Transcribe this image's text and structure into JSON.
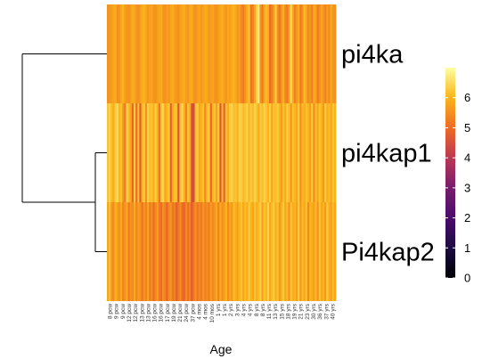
{
  "chart_data": {
    "type": "heatmap",
    "xlabel": "Age",
    "rows": [
      "pi4ka",
      "pi4kap1",
      "Pi4kap2"
    ],
    "x_tick_labels": [
      "8 pcw",
      "9 pcw",
      "9 pcw",
      "12 pcw",
      "12 pcw",
      "13 pcw",
      "13 pcw",
      "16 pcw",
      "16 pcw",
      "17 pcw",
      "19 pcw",
      "21 pcw",
      "24 pcw",
      "37 pcw",
      "4 mos",
      "4 mos",
      "10 mos",
      "1 yrs",
      "1 yrs",
      "2 yrs",
      "3 yrs",
      "4 yrs",
      "4 yrs",
      "8 yrs",
      "8 yrs",
      "11 yrs",
      "13 yrs",
      "15 yrs",
      "18 yrs",
      "19 yrs",
      "21 yrs",
      "23 yrs",
      "30 yrs",
      "36 yrs",
      "37 yrs",
      "40 yrs"
    ],
    "colorbar": {
      "min": 0,
      "max": 7,
      "ticks": [
        0,
        1,
        2,
        3,
        4,
        5,
        6
      ],
      "palette": "inferno-yellow-high"
    },
    "dendrogram": "pi4kap1 and Pi4kap2 cluster first, then join pi4ka",
    "values": [
      [
        5.5,
        5.6,
        5.7,
        5.8,
        5.9,
        5.5,
        5.6,
        5.8,
        6.0,
        5.7,
        5.6,
        5.5,
        5.7,
        5.9,
        5.8,
        5.6,
        5.5,
        5.7,
        5.9,
        6.0,
        5.8,
        5.6,
        5.7,
        5.8,
        5.6,
        5.5,
        5.7,
        5.8,
        5.9,
        5.6,
        5.5,
        5.7,
        5.6,
        5.8,
        5.9,
        5.7,
        5.6,
        5.5,
        5.7,
        5.8,
        5.9,
        5.7,
        5.6,
        5.8,
        5.9,
        5.6,
        5.5,
        5.7,
        5.8,
        5.6,
        5.7,
        5.9,
        5.8,
        5.6,
        5.7,
        5.8,
        5.6,
        5.5,
        5.7,
        5.8,
        5.9,
        5.7,
        5.6,
        5.8,
        5.7,
        5.9,
        6.0,
        5.8,
        5.6,
        5.7,
        5.4,
        5.2,
        5.6,
        5.9,
        6.2,
        5.1,
        5.3,
        5.8,
        6.4,
        6.7,
        5.6,
        5.2,
        5.8,
        6.1,
        5.9,
        5.0,
        5.3,
        5.7,
        6.3,
        5.5,
        5.1,
        5.6,
        6.0,
        5.4,
        5.2,
        5.7,
        6.5,
        5.8,
        5.3,
        5.6,
        5.9,
        5.2,
        5.5,
        6.1,
        5.8,
        5.4,
        5.6,
        5.3,
        5.9,
        5.7,
        5.2,
        5.5,
        5.8,
        5.6,
        5.3,
        5.7,
        5.4,
        5.9,
        5.6,
        5.5
      ],
      [
        6.2,
        6.4,
        6.1,
        5.9,
        6.3,
        6.5,
        6.0,
        6.2,
        5.6,
        5.2,
        6.4,
        6.1,
        5.8,
        4.9,
        6.3,
        5.0,
        6.2,
        4.7,
        6.0,
        6.3,
        5.5,
        6.4,
        6.1,
        6.2,
        5.9,
        6.3,
        6.0,
        5.1,
        6.2,
        6.4,
        5.8,
        6.0,
        6.3,
        4.8,
        5.9,
        6.2,
        6.1,
        4.6,
        6.2,
        6.4,
        6.0,
        5.3,
        6.2,
        5.9,
        4.5,
        4.4,
        6.1,
        6.3,
        5.8,
        6.0,
        6.2,
        5.4,
        6.1,
        6.3,
        4.9,
        6.0,
        6.2,
        5.7,
        6.3,
        4.6,
        6.1,
        4.8,
        6.2,
        5.9,
        6.3,
        6.4,
        6.1,
        6.2,
        6.0,
        6.4,
        6.3,
        6.1,
        6.2,
        6.4,
        6.0,
        6.3,
        6.1,
        6.4,
        6.2,
        5.9,
        6.3,
        6.1,
        6.4,
        6.2,
        6.0,
        6.3,
        5.8,
        6.2,
        6.1,
        6.3,
        6.0,
        5.7,
        6.2,
        5.9,
        6.3,
        6.1,
        5.6,
        6.2,
        6.0,
        5.8,
        6.3,
        5.5,
        6.1,
        5.9,
        6.2,
        6.0,
        5.7,
        6.3,
        5.4,
        6.1,
        5.8,
        6.2,
        6.0,
        5.6,
        6.3,
        5.9,
        6.1,
        5.8,
        6.2,
        6.0
      ],
      [
        5.8,
        6.2,
        5.6,
        5.4,
        6.0,
        5.7,
        5.5,
        5.9,
        5.3,
        5.6,
        5.8,
        5.2,
        5.6,
        5.4,
        5.9,
        5.3,
        5.7,
        5.5,
        5.1,
        5.6,
        5.3,
        5.8,
        5.2,
        5.5,
        5.0,
        5.4,
        5.7,
        5.2,
        5.0,
        5.5,
        5.3,
        4.9,
        5.4,
        5.6,
        5.1,
        5.3,
        4.8,
        5.2,
        5.5,
        5.0,
        4.9,
        5.4,
        5.1,
        5.3,
        4.7,
        5.2,
        5.5,
        5.1,
        5.4,
        5.2,
        5.6,
        5.3,
        5.5,
        5.2,
        5.7,
        5.4,
        5.6,
        5.8,
        5.3,
        5.9,
        5.5,
        5.7,
        6.0,
        5.4,
        5.8,
        5.6,
        6.1,
        5.9,
        5.7,
        6.0,
        6.2,
        5.8,
        6.1,
        5.9,
        6.3,
        6.0,
        5.8,
        6.2,
        5.9,
        6.1,
        6.3,
        5.7,
        6.2,
        6.0,
        6.4,
        5.8,
        6.1,
        6.3,
        5.9,
        6.2,
        5.6,
        6.0,
        6.3,
        5.8,
        6.1,
        5.5,
        6.2,
        5.9,
        6.0,
        5.7,
        6.3,
        5.6,
        6.1,
        5.8,
        6.2,
        5.4,
        6.0,
        5.9,
        5.7,
        6.1,
        5.5,
        6.2,
        5.8,
        6.0,
        5.6,
        6.3,
        5.9,
        5.7,
        6.1,
        5.8
      ]
    ]
  }
}
